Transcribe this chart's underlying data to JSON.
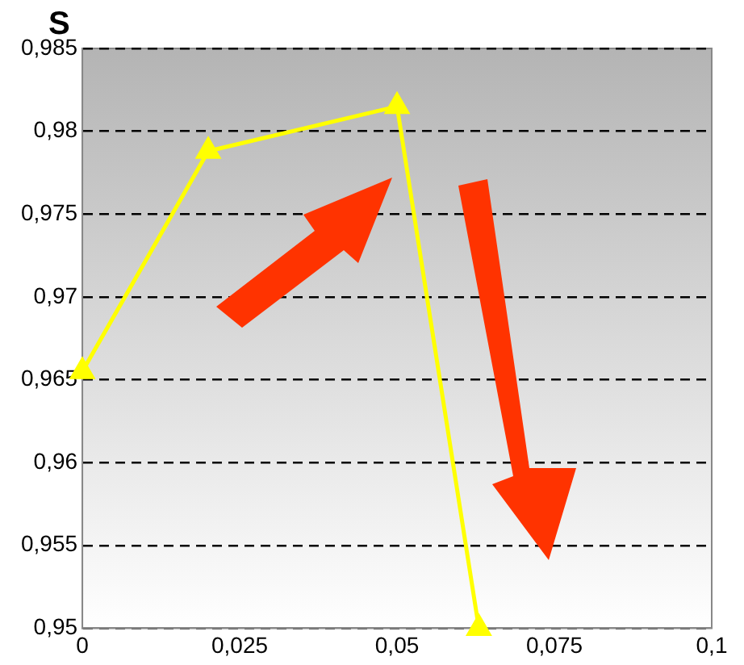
{
  "chart_data": {
    "type": "line",
    "ylabel": "S",
    "x": [
      0,
      0.02,
      0.05,
      0.063
    ],
    "series": [
      {
        "color": "#ffff00",
        "values": [
          0.9655,
          0.9788,
          0.9815,
          0.95
        ]
      }
    ],
    "xlim": [
      0,
      0.1
    ],
    "xticks": [
      0,
      {
        "value": 0.025,
        "label": "0,025"
      },
      {
        "value": 0.05,
        "label": "0,05"
      },
      {
        "value": 0.075,
        "label": "0,075"
      },
      {
        "value": 0.1,
        "label": "0,1"
      }
    ],
    "ylim": [
      0.95,
      0.985
    ],
    "yticks": [
      {
        "value": 0.95,
        "label": "0,95"
      },
      {
        "value": 0.955,
        "label": "0,955"
      },
      {
        "value": 0.96,
        "label": "0,96"
      },
      {
        "value": 0.965,
        "label": "0,965"
      },
      {
        "value": 0.97,
        "label": "0,97"
      },
      {
        "value": 0.975,
        "label": "0,975"
      },
      {
        "value": 0.98,
        "label": "0,98"
      },
      {
        "value": 0.985,
        "label": "0,985"
      }
    ],
    "grid": "y",
    "marker": "triangle",
    "line_style": "solid",
    "legend": false
  }
}
